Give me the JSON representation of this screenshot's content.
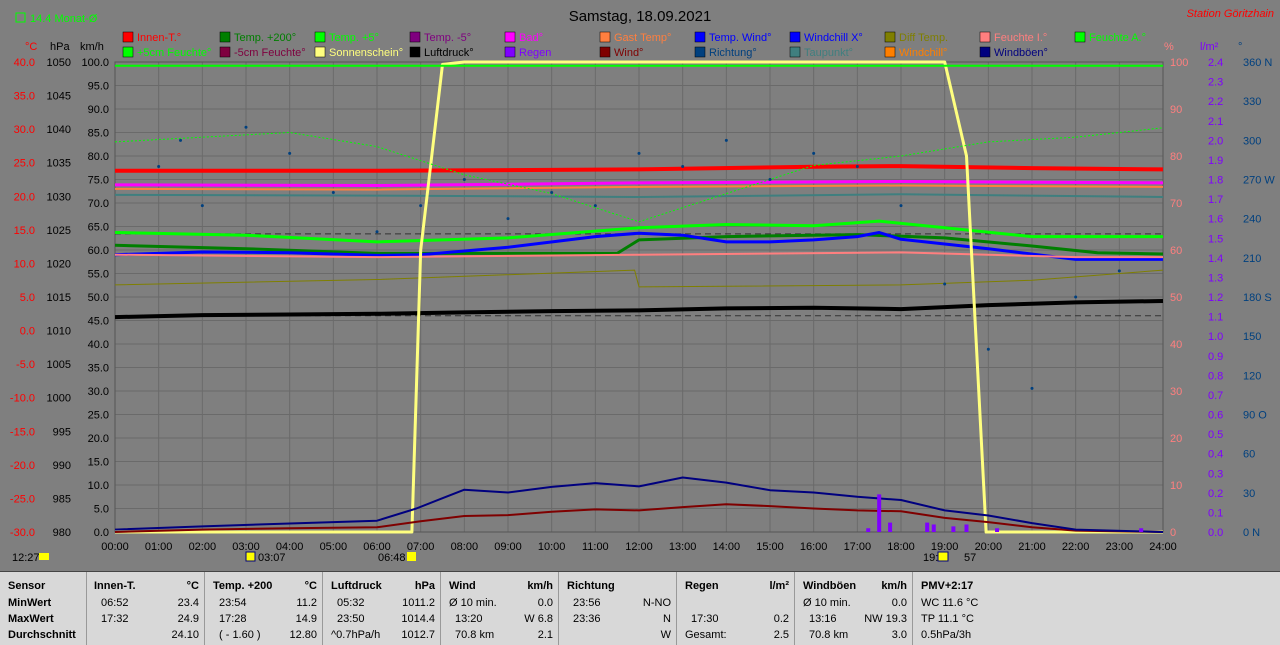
{
  "title": "Samstag, 18.09.2021",
  "station": "Station Göritzhain",
  "avg_label": "14.4 Monat-Ø",
  "axes": {
    "temp_unit": "°C",
    "press_unit": "hPa",
    "wind_unit": "km/h",
    "hum_unit": "%",
    "rain_unit": "l/m²",
    "dir_unit": "°",
    "temp_ticks": [
      "40.0",
      "35.0",
      "30.0",
      "25.0",
      "20.0",
      "15.0",
      "10.0",
      "5.0",
      "0.0",
      "-5.0",
      "-10.0",
      "-15.0",
      "-20.0",
      "-25.0",
      "-30.0"
    ],
    "press_ticks": [
      "1050",
      "1045",
      "1040",
      "1035",
      "1030",
      "1025",
      "1020",
      "1015",
      "1010",
      "1005",
      "1000",
      "995",
      "990",
      "985",
      "980"
    ],
    "wind_ticks": [
      "100.0",
      "95.0",
      "90.0",
      "85.0",
      "80.0",
      "75.0",
      "70.0",
      "65.0",
      "60.0",
      "55.0",
      "50.0",
      "45.0",
      "40.0",
      "35.0",
      "30.0",
      "25.0",
      "20.0",
      "15.0",
      "10.0",
      "5.0",
      "0.0"
    ],
    "hum_ticks": [
      "100",
      "90",
      "80",
      "70",
      "60",
      "50",
      "40",
      "30",
      "20",
      "10",
      "0"
    ],
    "rain_ticks": [
      "2.4",
      "2.3",
      "2.2",
      "2.1",
      "2.0",
      "1.9",
      "1.8",
      "1.7",
      "1.6",
      "1.5",
      "1.4",
      "1.3",
      "1.2",
      "1.1",
      "1.0",
      "0.9",
      "0.8",
      "0.7",
      "0.6",
      "0.5",
      "0.4",
      "0.3",
      "0.2",
      "0.1",
      "0.0"
    ],
    "dir_ticks": [
      "360 N",
      "330",
      "300",
      "270 W",
      "240",
      "210",
      "180 S",
      "150",
      "120",
      "90 O",
      "60",
      "30",
      "0 N"
    ],
    "time_ticks": [
      "00:00",
      "01:00",
      "02:00",
      "03:00",
      "04:00",
      "05:00",
      "06:00",
      "07:00",
      "08:00",
      "09:00",
      "10:00",
      "11:00",
      "12:00",
      "13:00",
      "14:00",
      "15:00",
      "16:00",
      "17:00",
      "18:00",
      "19:00",
      "20:00",
      "21:00",
      "22:00",
      "23:00",
      "24:00"
    ]
  },
  "legend": [
    {
      "label": "Innen-T.°",
      "color": "#ff0000"
    },
    {
      "label": "Temp. +200°",
      "color": "#007f00"
    },
    {
      "label": "Temp. +5°",
      "color": "#00ff00"
    },
    {
      "label": "Temp. -5°",
      "color": "#7f007f"
    },
    {
      "label": "Bad°",
      "color": "#ff00ff"
    },
    {
      "label": "Gast Temp°",
      "color": "#ff7f3f"
    },
    {
      "label": "Temp. Wind°",
      "color": "#0000ff"
    },
    {
      "label": "Windchill X°",
      "color": "#0000ff"
    },
    {
      "label": "Diff Temp.",
      "color": "#7f7f00"
    },
    {
      "label": "Feuchte I.°",
      "color": "#ff7f7f"
    },
    {
      "label": "Feuchte A.°",
      "color": "#00ff00"
    },
    {
      "label": "+5cm Feuchte°",
      "color": "#00ff00"
    },
    {
      "label": "-5cm Feuchte°",
      "color": "#7f003f"
    },
    {
      "label": "Sonnenschein°",
      "color": "#ffff7f"
    },
    {
      "label": "Luftdruck°",
      "color": "#000000"
    },
    {
      "label": "Regen",
      "color": "#7f00ff"
    },
    {
      "label": "Wind°",
      "color": "#7f0000"
    },
    {
      "label": "Richtung°",
      "color": "#00407f"
    },
    {
      "label": "Taupunkt°",
      "color": "#3f7f7f"
    },
    {
      "label": "Windchill°",
      "color": "#ff7f00"
    },
    {
      "label": "Windböen°",
      "color": "#00007f"
    }
  ],
  "sun_marks": {
    "sunrise": "06:48",
    "sunset_partial": "19:",
    "sunset_end": "57",
    "moon_time": "03:07",
    "now_time": "12:27"
  },
  "chart_data": {
    "type": "line",
    "title": "Samstag, 18.09.2021",
    "x_unit": "hour of day",
    "xlim": [
      0,
      24
    ],
    "series": [
      {
        "name": "Innen-T.°",
        "axis": "°C",
        "x": [
          0,
          6,
          12,
          16,
          18,
          21,
          24
        ],
        "y": [
          23.8,
          23.8,
          24.0,
          24.4,
          24.5,
          24.2,
          24.0
        ]
      },
      {
        "name": "Temp. +200°",
        "axis": "°C",
        "x": [
          0,
          3,
          6,
          9,
          11.5,
          12,
          14,
          17,
          19,
          21,
          22.5,
          24
        ],
        "y": [
          12.7,
          12.2,
          11.5,
          11.5,
          11.5,
          13.5,
          14.0,
          14.3,
          13.8,
          12.6,
          11.6,
          11.4
        ]
      },
      {
        "name": "Temp. +5°",
        "axis": "°C",
        "x": [
          0,
          3,
          6,
          9,
          12,
          14,
          16,
          17.5,
          19,
          21,
          24
        ],
        "y": [
          14.6,
          14.2,
          13.2,
          13.8,
          15.3,
          15.8,
          15.6,
          16.3,
          15.3,
          14.0,
          14.0
        ]
      },
      {
        "name": "Temp. Wind°",
        "axis": "°C",
        "x": [
          0,
          2,
          4,
          6,
          7,
          9,
          11,
          12,
          13,
          14,
          15,
          16,
          17,
          17.5,
          18,
          20,
          22,
          24
        ],
        "y": [
          11.3,
          11.7,
          11.6,
          11.2,
          11.3,
          12.4,
          14.0,
          14.5,
          14.2,
          13.2,
          13.2,
          13.5,
          14.0,
          14.6,
          13.6,
          12.2,
          10.6,
          10.6
        ]
      },
      {
        "name": "Bad°",
        "axis": "°C",
        "x": [
          0,
          6,
          12,
          18,
          24
        ],
        "y": [
          21.7,
          21.6,
          22.0,
          22.2,
          22.0
        ]
      },
      {
        "name": "Gast Temp°",
        "axis": "°C",
        "x": [
          0,
          6,
          12,
          18,
          24
        ],
        "y": [
          21.1,
          21.0,
          21.4,
          21.6,
          21.4
        ]
      },
      {
        "name": "Taupunkt°",
        "axis": "°C",
        "x": [
          0,
          6,
          12,
          18,
          24
        ],
        "y": [
          20.2,
          20.1,
          19.9,
          20.3,
          19.9
        ]
      },
      {
        "name": "Feuchte I.°",
        "axis": "%",
        "x": [
          0,
          6,
          12,
          18,
          20,
          22,
          24
        ],
        "y": [
          59,
          58.5,
          59,
          59.5,
          59,
          58.5,
          58.5
        ]
      },
      {
        "name": "Diff Temp.",
        "axis": "°C",
        "x": [
          0,
          6,
          11.9,
          12,
          18,
          21,
          24
        ],
        "y": [
          6.8,
          7.6,
          9.0,
          6.5,
          6.8,
          7.5,
          9.0
        ]
      },
      {
        "name": "Luftdruck°",
        "axis": "hPa",
        "x": [
          0,
          2,
          4,
          6,
          8,
          10,
          12,
          14,
          16,
          18,
          20,
          22,
          24
        ],
        "y": [
          1012.0,
          1012.3,
          1012.4,
          1012.5,
          1012.7,
          1012.9,
          1013.0,
          1013.3,
          1013.4,
          1013.2,
          1013.8,
          1014.2,
          1014.4
        ]
      },
      {
        "name": "Sonnenschein°",
        "axis": "km/h",
        "x": [
          0,
          6.8,
          7.0,
          7.5,
          8,
          19,
          19.5,
          19.95,
          20,
          24
        ],
        "y": [
          0,
          0,
          60,
          99.5,
          100,
          100,
          80,
          0,
          0,
          0
        ]
      },
      {
        "name": "Wind°",
        "axis": "km/h",
        "x": [
          0,
          2,
          4,
          6,
          7,
          8,
          9,
          10,
          11,
          12,
          13,
          14,
          15,
          16,
          17,
          18,
          19,
          20,
          21,
          22,
          24
        ],
        "y": [
          0,
          0.5,
          0.8,
          1.0,
          2.3,
          3.4,
          3.6,
          4.3,
          4.8,
          4.6,
          5.3,
          5.9,
          5.5,
          5.0,
          4.6,
          4.4,
          3.0,
          2.1,
          1.0,
          0.3,
          0
        ]
      },
      {
        "name": "Windböen°",
        "axis": "km/h",
        "x": [
          0,
          2,
          4,
          6,
          6.9,
          7.5,
          8,
          9,
          10,
          11,
          12,
          13,
          14,
          15,
          16,
          17,
          18,
          19,
          20,
          21,
          22,
          24
        ],
        "y": [
          0.5,
          1.2,
          1.8,
          2.4,
          5.0,
          7.2,
          9.0,
          8.4,
          9.6,
          10.4,
          9.7,
          11.6,
          10.5,
          8.9,
          8.4,
          7.5,
          6.8,
          4.6,
          3.5,
          1.9,
          0.5,
          0
        ]
      },
      {
        "name": "Feuchte A.°",
        "axis": "%",
        "x": [
          0,
          2,
          4,
          6,
          8,
          10,
          12,
          14,
          16,
          18,
          20,
          22,
          24
        ],
        "y": [
          83,
          84,
          85,
          82,
          76,
          72,
          66,
          72,
          78,
          80,
          83,
          84,
          86
        ]
      },
      {
        "name": "Richtung°",
        "axis": "°",
        "type": "scatter",
        "x": [
          1,
          1.5,
          2,
          3,
          4,
          5,
          6,
          7,
          8,
          9,
          10,
          11,
          12,
          13,
          14,
          15,
          16,
          17,
          18,
          19,
          20,
          21,
          22,
          23
        ],
        "y": [
          280,
          300,
          250,
          310,
          290,
          260,
          230,
          250,
          270,
          240,
          260,
          250,
          290,
          280,
          300,
          270,
          290,
          280,
          250,
          190,
          140,
          110,
          180,
          200
        ]
      },
      {
        "name": "Regen",
        "axis": "l/m²",
        "type": "bar",
        "x": [
          17.25,
          17.5,
          17.75,
          18.6,
          18.75,
          19.2,
          19.5,
          20.2,
          23.5
        ],
        "y": [
          0.02,
          0.2,
          0.05,
          0.05,
          0.04,
          0.03,
          0.04,
          0.02,
          0.02
        ]
      }
    ],
    "grid": true
  },
  "stats": {
    "sensor": {
      "h": "Sensor",
      "min": "MinWert",
      "max": "MaxWert",
      "avg": "Durchschnitt"
    },
    "innen": {
      "h": "Innen-T.",
      "u": "°C",
      "min_t": "06:52",
      "min_v": "23.4",
      "max_t": "17:32",
      "max_v": "24.9",
      "avg_v": "24.10"
    },
    "temp200": {
      "h": "Temp. +200",
      "u": "°C",
      "min_t": "23:54",
      "min_v": "11.2",
      "max_t": "17:28",
      "max_v": "14.9",
      "avg_t": "( - 1.60 )",
      "avg_v": "12.80"
    },
    "druck": {
      "h": "Luftdruck",
      "u": "hPa",
      "min_t": "05:32",
      "min_v": "1011.2",
      "max_t": "23:50",
      "max_v": "1014.4",
      "avg_t": "^0.7hPa/h",
      "avg_v": "1012.7"
    },
    "wind": {
      "h": "Wind",
      "u": "km/h",
      "min_t": "Ø 10 min.",
      "min_v": "0.0",
      "max_t": "13:20",
      "max_v": "W 6.8",
      "avg_t": "70.8 km",
      "avg_v": "2.1"
    },
    "richtung": {
      "h": "Richtung",
      "min_t": "23:56",
      "min_v": "N-NO",
      "max_t": "23:36",
      "max_v": "N",
      "avg_v": "W"
    },
    "regen": {
      "h": "Regen",
      "u": "l/m²",
      "max_t": "17:30",
      "max_v": "0.2",
      "avg_t": "Gesamt:",
      "avg_v": "2.5"
    },
    "boeen": {
      "h": "Windböen",
      "u": "km/h",
      "min_t": "Ø 10 min.",
      "min_v": "0.0",
      "max_t": "13:16",
      "max_v": "NW 19.3",
      "avg_t": "70.8 km",
      "avg_v": "3.0"
    },
    "pmv": {
      "h": "PMV+2:17",
      "min_v": "WC 11.6 °C",
      "max_v": "TP 11.1 °C",
      "avg_v": "0.5hPa/3h"
    }
  }
}
